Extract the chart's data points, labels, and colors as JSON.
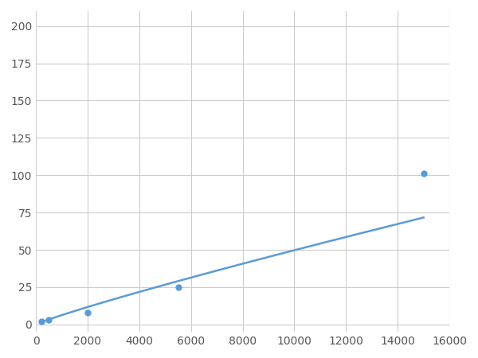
{
  "x": [
    200,
    500,
    2000,
    5500,
    15000
  ],
  "y": [
    2.0,
    3.0,
    8.0,
    25.0,
    101.0
  ],
  "line_color": "#5b9bd5",
  "marker_color": "#5b9bd5",
  "marker_size": 6,
  "xlim": [
    0,
    16000
  ],
  "ylim": [
    -5,
    210
  ],
  "xticks": [
    0,
    2000,
    4000,
    6000,
    8000,
    10000,
    12000,
    14000,
    16000
  ],
  "yticks": [
    0,
    25,
    50,
    75,
    100,
    125,
    150,
    175,
    200
  ],
  "grid_color": "#cccccc",
  "bg_color": "#ffffff",
  "linewidth": 1.8
}
